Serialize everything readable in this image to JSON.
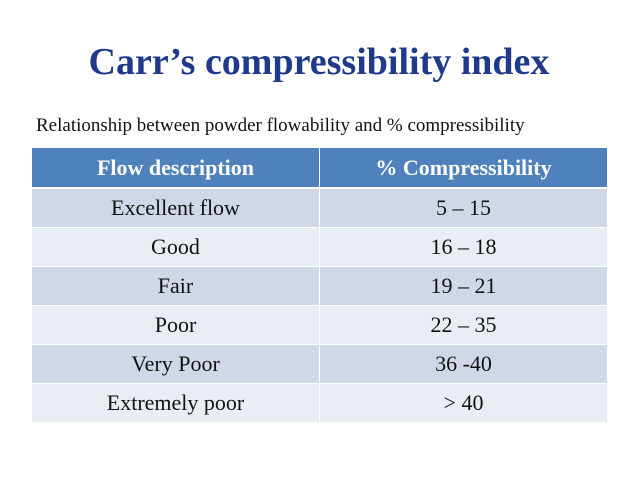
{
  "slide": {
    "title": "Carr’s compressibility index",
    "subtitle": "Relationship between powder flowability and % compressibility"
  },
  "table": {
    "headers": [
      "Flow description",
      "% Compressibility"
    ],
    "rows": [
      [
        "Excellent flow",
        "5 – 15"
      ],
      [
        "Good",
        "16 – 18"
      ],
      [
        "Fair",
        "19 – 21"
      ],
      [
        "Poor",
        "22 – 35"
      ],
      [
        "Very Poor",
        "36 -40"
      ],
      [
        "Extremely poor",
        "> 40"
      ]
    ]
  },
  "colors": {
    "title": "#1f3a8a",
    "header_bg": "#4f81bd",
    "row_odd_bg": "#d0d8e8",
    "row_even_bg": "#e9edf4"
  }
}
